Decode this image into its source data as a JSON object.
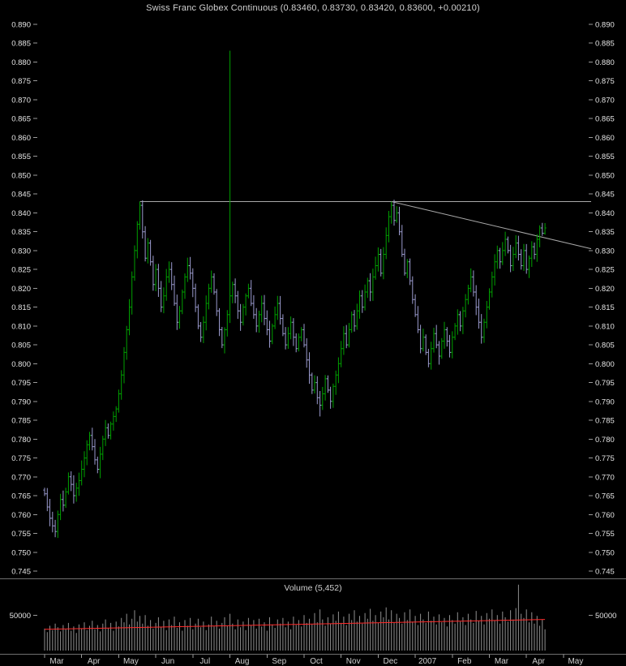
{
  "window": {
    "title": "Swiss Franc Globex Continuous (0.83460, 0.83730, 0.83420, 0.83600, +0.00210)"
  },
  "chart_data": [
    {
      "type": "ohlc",
      "title": "Swiss Franc Globex Continuous (0.83460, 0.83730, 0.83420, 0.83600, +0.00210)",
      "quote": {
        "open": "0.83460",
        "high": "0.83730",
        "low": "0.83420",
        "close": "0.83600",
        "change": "+0.00210"
      },
      "ylim": [
        0.745,
        0.89
      ],
      "ytick_step": 0.005,
      "axis_sides": "both",
      "grid": false,
      "x_tick_labels": [
        "Mar",
        "Apr",
        "May",
        "Jun",
        "Jul",
        "Aug",
        "Sep",
        "Oct",
        "Nov",
        "Dec",
        "2007",
        "Feb",
        "Mar",
        "Apr",
        "May"
      ],
      "month_start_indices": [
        0,
        14,
        28,
        42,
        56,
        70,
        84,
        98,
        112,
        126,
        140,
        154,
        168,
        182,
        196
      ],
      "closes": [
        0.7655,
        0.762,
        0.759,
        0.757,
        0.7555,
        0.76,
        0.764,
        0.7625,
        0.766,
        0.77,
        0.768,
        0.765,
        0.767,
        0.769,
        0.772,
        0.775,
        0.7785,
        0.781,
        0.778,
        0.7745,
        0.772,
        0.776,
        0.78,
        0.783,
        0.781,
        0.784,
        0.786,
        0.788,
        0.792,
        0.797,
        0.803,
        0.809,
        0.815,
        0.823,
        0.83,
        0.837,
        0.842,
        0.835,
        0.828,
        0.832,
        0.827,
        0.821,
        0.825,
        0.82,
        0.815,
        0.818,
        0.823,
        0.825,
        0.821,
        0.816,
        0.811,
        0.814,
        0.819,
        0.823,
        0.826,
        0.824,
        0.82,
        0.815,
        0.81,
        0.807,
        0.811,
        0.816,
        0.82,
        0.823,
        0.819,
        0.814,
        0.809,
        0.805,
        0.809,
        0.813,
        0.818,
        0.821,
        0.818,
        0.814,
        0.811,
        0.815,
        0.818,
        0.82,
        0.816,
        0.813,
        0.81,
        0.813,
        0.816,
        0.812,
        0.809,
        0.806,
        0.81,
        0.813,
        0.816,
        0.812,
        0.808,
        0.805,
        0.808,
        0.811,
        0.807,
        0.804,
        0.807,
        0.809,
        0.805,
        0.801,
        0.797,
        0.793,
        0.795,
        0.791,
        0.789,
        0.792,
        0.796,
        0.793,
        0.79,
        0.794,
        0.797,
        0.8,
        0.804,
        0.808,
        0.805,
        0.809,
        0.813,
        0.81,
        0.814,
        0.818,
        0.815,
        0.819,
        0.822,
        0.819,
        0.823,
        0.826,
        0.829,
        0.824,
        0.829,
        0.834,
        0.839,
        0.842,
        0.838,
        0.84,
        0.835,
        0.829,
        0.824,
        0.827,
        0.822,
        0.817,
        0.813,
        0.809,
        0.804,
        0.807,
        0.803,
        0.8,
        0.804,
        0.808,
        0.805,
        0.802,
        0.806,
        0.809,
        0.806,
        0.803,
        0.807,
        0.81,
        0.813,
        0.81,
        0.814,
        0.817,
        0.82,
        0.823,
        0.819,
        0.815,
        0.811,
        0.807,
        0.811,
        0.815,
        0.819,
        0.823,
        0.827,
        0.83,
        0.827,
        0.83,
        0.833,
        0.83,
        0.826,
        0.829,
        0.832,
        0.829,
        0.826,
        0.83,
        0.825,
        0.828,
        0.831,
        0.829,
        0.833,
        0.836,
        0.8346,
        0.836
      ],
      "special_bars": {
        "4": {
          "low": 0.754
        },
        "36": {
          "high": 0.843
        },
        "70": {
          "high": 0.883
        },
        "104": {
          "low": 0.786
        },
        "131": {
          "high": 0.843
        },
        "189": {
          "high": 0.8373,
          "low": 0.8342
        }
      },
      "annotations": [
        {
          "name": "horizontal-resistance-line",
          "type": "hline",
          "y": 0.843,
          "from_bar": 36,
          "to_x": "right_edge",
          "color": "#A8A8A8"
        },
        {
          "name": "descending-trendline",
          "type": "segment",
          "from_bar": 131,
          "from_y": 0.843,
          "to_x": "right_edge",
          "to_y": 0.8305,
          "color": "#A8A8A8"
        }
      ],
      "colors": {
        "up": "#00A000",
        "down": "#9999CC",
        "axis_text": "#E4E4E4",
        "background": "#000000",
        "annotation_line": "#A8A8A8"
      }
    },
    {
      "type": "bar",
      "title": "Volume (5,452)",
      "axis_label": "50000",
      "axis_value": 50000,
      "values_unit": 1000,
      "ymax": 95000,
      "bar_color": "#8F8F8F",
      "regression_line": {
        "from": 30000,
        "to": 44000,
        "color": "#FF2A2A"
      },
      "values": [
        31,
        26,
        35,
        29,
        38,
        33,
        27,
        36,
        30,
        39,
        28,
        34,
        25,
        37,
        31,
        40,
        29,
        35,
        42,
        30,
        36,
        27,
        38,
        44,
        32,
        39,
        28,
        41,
        34,
        46,
        40,
        52,
        37,
        45,
        57,
        41,
        49,
        38,
        50,
        35,
        43,
        31,
        39,
        47,
        33,
        42,
        29,
        44,
        36,
        48,
        32,
        40,
        28,
        43,
        35,
        46,
        30,
        38,
        45,
        33,
        41,
        29,
        37,
        48,
        34,
        42,
        31,
        39,
        47,
        35,
        52,
        38,
        30,
        44,
        33,
        41,
        29,
        46,
        36,
        43,
        31,
        45,
        34,
        40,
        28,
        47,
        37,
        32,
        44,
        38,
        46,
        33,
        41,
        30,
        48,
        36,
        43,
        34,
        50,
        39,
        45,
        37,
        53,
        40,
        58,
        44,
        35,
        47,
        38,
        51,
        42,
        55,
        39,
        48,
        36,
        52,
        43,
        57,
        41,
        49,
        38,
        53,
        45,
        59,
        42,
        50,
        39,
        55,
        47,
        61,
        44,
        57,
        40,
        52,
        46,
        38,
        54,
        43,
        58,
        41,
        49,
        36,
        52,
        44,
        39,
        55,
        42,
        48,
        37,
        51,
        40,
        46,
        34,
        50,
        43,
        38,
        54,
        41,
        47,
        36,
        52,
        44,
        39,
        56,
        42,
        49,
        37,
        53,
        45,
        58,
        43,
        50,
        38,
        55,
        47,
        41,
        57,
        44,
        60,
        93,
        52,
        46,
        58,
        40,
        54,
        38,
        49,
        35,
        44,
        30
      ]
    }
  ]
}
